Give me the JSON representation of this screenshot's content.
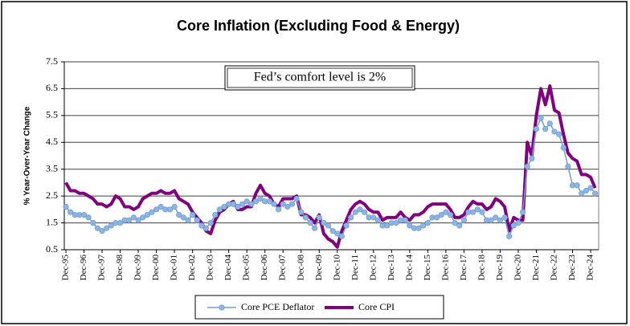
{
  "chart_data": {
    "type": "line",
    "title": "Core Inflation (Excluding Food & Energy)",
    "y_label": "% Year-Over-Year Change",
    "annotation": "Fed’s comfort level is 2%",
    "legend": "bottom",
    "grid": true,
    "ylim": [
      0.5,
      7.5
    ],
    "yticks": [
      0.5,
      1.5,
      2.5,
      3.5,
      4.5,
      5.5,
      6.5,
      7.5
    ],
    "categories": [
      "Dec-95",
      null,
      null,
      null,
      "Dec-96",
      null,
      null,
      null,
      "Dec-97",
      null,
      null,
      null,
      "Dec-98",
      null,
      null,
      null,
      "Dec-99",
      null,
      null,
      null,
      "Dec-00",
      null,
      null,
      null,
      "Dec-01",
      null,
      null,
      null,
      "Dec-02",
      null,
      null,
      null,
      "Dec-03",
      null,
      null,
      null,
      "Dec-04",
      null,
      null,
      null,
      "Dec-05",
      null,
      null,
      null,
      "Dec-06",
      null,
      null,
      null,
      "Dec-07",
      null,
      null,
      null,
      "Dec-08",
      null,
      null,
      null,
      "Dec-09",
      null,
      null,
      null,
      "Dec-10",
      null,
      null,
      null,
      "Dec-11",
      null,
      null,
      null,
      "Dec-12",
      null,
      null,
      null,
      "Dec-13",
      null,
      null,
      null,
      "Dec-14",
      null,
      null,
      null,
      "Dec-15",
      null,
      null,
      null,
      "Dec-16",
      null,
      null,
      null,
      "Dec-17",
      null,
      null,
      null,
      "Dec-18",
      null,
      null,
      null,
      "Dec-19",
      null,
      null,
      null,
      "Dec-20",
      null,
      null,
      null,
      "Dec-21",
      null,
      null,
      null,
      "Dec-22",
      null,
      null,
      null,
      "Dec-23",
      null,
      null,
      null,
      "Dec-24",
      null
    ],
    "series": [
      {
        "name": "Core PCE Deflator",
        "color": "#6f9fd8",
        "markers": true,
        "values": [
          2.1,
          1.9,
          1.8,
          1.8,
          1.8,
          1.7,
          1.5,
          1.3,
          1.2,
          1.3,
          1.4,
          1.5,
          1.5,
          1.6,
          1.6,
          1.7,
          1.6,
          1.7,
          1.8,
          1.9,
          2.0,
          2.1,
          2.0,
          2.0,
          2.1,
          1.8,
          1.7,
          1.6,
          1.8,
          1.6,
          1.4,
          1.3,
          1.5,
          1.8,
          2.0,
          2.1,
          2.2,
          2.2,
          2.1,
          2.2,
          2.3,
          2.2,
          2.3,
          2.4,
          2.3,
          2.3,
          2.2,
          2.0,
          2.2,
          2.1,
          2.2,
          2.4,
          1.9,
          1.7,
          1.5,
          1.3,
          1.7,
          1.5,
          1.4,
          1.2,
          1.1,
          1.0,
          1.4,
          1.7,
          1.9,
          2.0,
          1.9,
          1.7,
          1.7,
          1.6,
          1.4,
          1.4,
          1.5,
          1.5,
          1.6,
          1.6,
          1.4,
          1.3,
          1.3,
          1.4,
          1.5,
          1.7,
          1.7,
          1.8,
          1.9,
          1.8,
          1.5,
          1.4,
          1.6,
          1.9,
          1.9,
          2.0,
          1.9,
          1.6,
          1.6,
          1.7,
          1.6,
          1.7,
          1.0,
          1.4,
          1.5,
          1.9,
          3.6,
          3.9,
          5.0,
          5.4,
          5.0,
          5.2,
          4.9,
          4.8,
          4.3,
          3.6,
          2.9,
          2.9,
          2.6,
          2.7,
          2.8,
          2.6
        ]
      },
      {
        "name": "Core CPI",
        "color": "#800080",
        "markers": false,
        "values": [
          3.0,
          2.7,
          2.7,
          2.6,
          2.6,
          2.5,
          2.4,
          2.2,
          2.2,
          2.1,
          2.2,
          2.5,
          2.4,
          2.1,
          2.1,
          2.0,
          2.1,
          2.4,
          2.5,
          2.6,
          2.6,
          2.7,
          2.6,
          2.6,
          2.7,
          2.4,
          2.3,
          2.2,
          1.9,
          1.7,
          1.5,
          1.2,
          1.1,
          1.6,
          1.9,
          2.0,
          2.2,
          2.3,
          2.0,
          2.0,
          2.1,
          2.1,
          2.6,
          2.9,
          2.6,
          2.5,
          2.2,
          2.1,
          2.4,
          2.4,
          2.4,
          2.5,
          1.8,
          1.8,
          1.7,
          1.5,
          1.8,
          1.1,
          0.9,
          0.8,
          0.6,
          1.2,
          1.6,
          2.0,
          2.2,
          2.3,
          2.2,
          2.0,
          1.9,
          1.9,
          1.6,
          1.7,
          1.7,
          1.7,
          1.9,
          1.7,
          1.6,
          1.8,
          1.8,
          1.9,
          2.1,
          2.2,
          2.2,
          2.2,
          2.2,
          2.0,
          1.7,
          1.7,
          1.8,
          2.1,
          2.3,
          2.2,
          2.2,
          2.0,
          2.1,
          2.4,
          2.3,
          2.1,
          1.2,
          1.7,
          1.6,
          1.6,
          4.5,
          4.0,
          5.5,
          6.5,
          5.9,
          6.6,
          5.7,
          5.6,
          4.8,
          4.1,
          3.9,
          3.8,
          3.3,
          3.3,
          3.2,
          2.8
        ]
      }
    ]
  }
}
